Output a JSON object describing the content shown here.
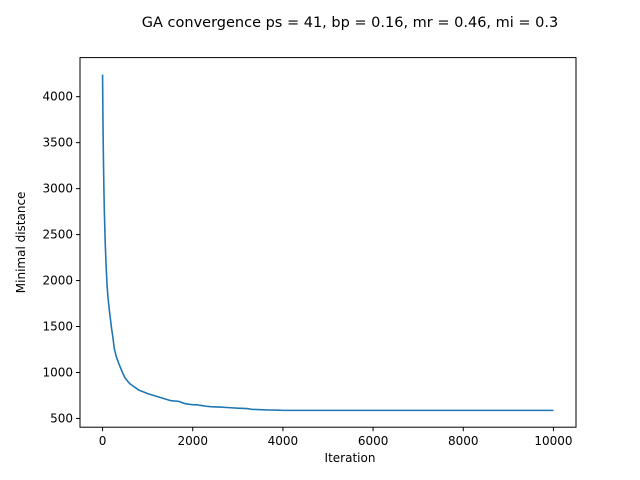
{
  "chart_data": {
    "type": "line",
    "title": "GA convergence ps = 41, bp = 0.16, mr = 0.46, mi = 0.3",
    "xlabel": "Iteration",
    "ylabel": "Minimal distance",
    "xlim": [
      -500,
      10500
    ],
    "ylim": [
      405,
      4425
    ],
    "xticks": [
      0,
      2000,
      4000,
      6000,
      8000,
      10000
    ],
    "yticks": [
      500,
      1000,
      1500,
      2000,
      2500,
      3000,
      3500,
      4000
    ],
    "grid": false,
    "legend": "none",
    "series": [
      {
        "color": "#1f77b4",
        "x": [
          0,
          10,
          20,
          30,
          40,
          60,
          80,
          100,
          120,
          150,
          180,
          200,
          230,
          260,
          300,
          350,
          400,
          450,
          500,
          550,
          600,
          700,
          800,
          900,
          1000,
          1100,
          1200,
          1300,
          1400,
          1500,
          1600,
          1700,
          1800,
          1900,
          2000,
          2100,
          2200,
          2300,
          2400,
          2600,
          2800,
          3000,
          3200,
          3300,
          3500,
          3700,
          3900,
          4000,
          5000,
          6000,
          7000,
          8000,
          9000,
          10000
        ],
        "y": [
          4240,
          3700,
          3300,
          3000,
          2750,
          2400,
          2150,
          1950,
          1820,
          1680,
          1560,
          1480,
          1380,
          1260,
          1180,
          1110,
          1050,
          990,
          940,
          910,
          880,
          845,
          810,
          790,
          770,
          755,
          740,
          725,
          710,
          695,
          690,
          685,
          665,
          655,
          650,
          648,
          640,
          633,
          628,
          624,
          618,
          612,
          608,
          600,
          596,
          592,
          590,
          588,
          588,
          588,
          588,
          588,
          588,
          588
        ]
      }
    ]
  }
}
